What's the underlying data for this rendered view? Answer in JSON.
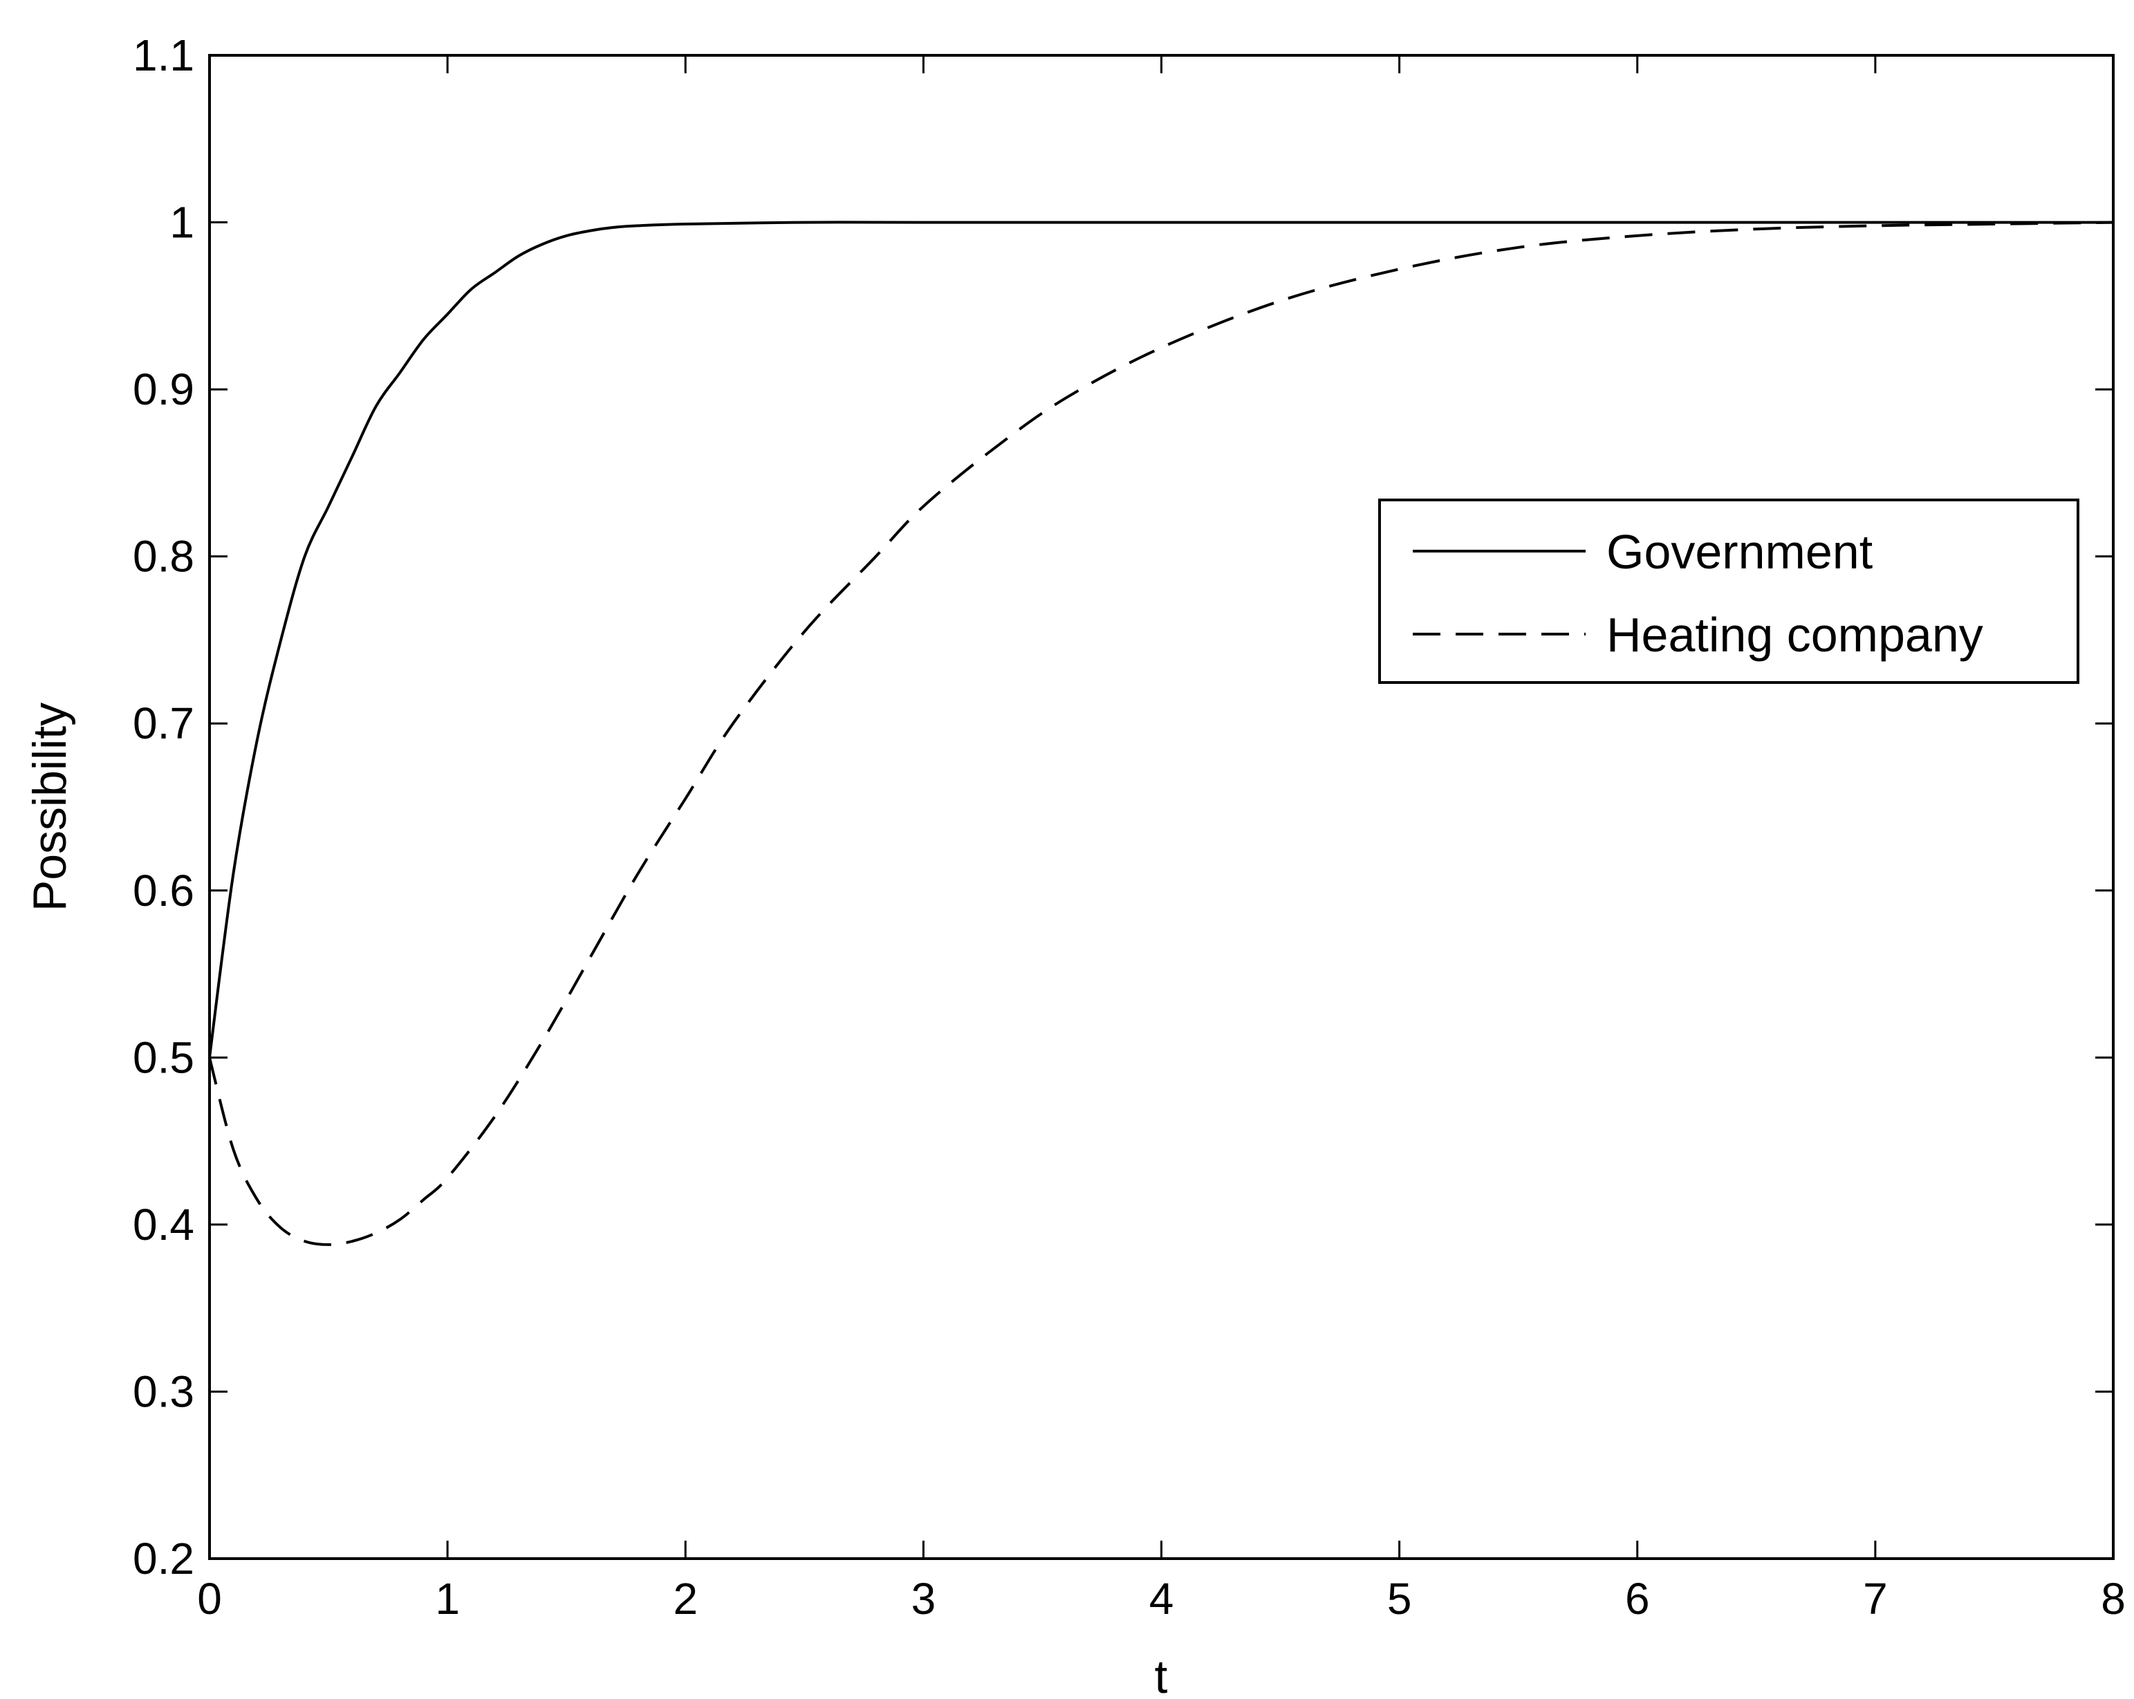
{
  "chart_data": {
    "type": "line",
    "title": "",
    "xlabel": "t",
    "ylabel": "Possibility",
    "xlim": [
      0,
      8
    ],
    "ylim": [
      0.2,
      1.1
    ],
    "xticks": [
      0,
      1,
      2,
      3,
      4,
      5,
      6,
      7,
      8
    ],
    "xtick_labels": [
      "0",
      "1",
      "2",
      "3",
      "4",
      "5",
      "6",
      "7",
      "8"
    ],
    "yticks": [
      0.2,
      0.3,
      0.4,
      0.5,
      0.6,
      0.7,
      0.8,
      0.9,
      1.0,
      1.1
    ],
    "ytick_labels": [
      "0.2",
      "0.3",
      "0.4",
      "0.5",
      "0.6",
      "0.7",
      "0.8",
      "0.9",
      "1",
      "1.1"
    ],
    "grid": false,
    "legend_position": "upper-right",
    "series": [
      {
        "name": "Government",
        "style": "solid",
        "color": "#000000",
        "x": [
          0,
          0.1,
          0.2,
          0.3,
          0.4,
          0.5,
          0.6,
          0.7,
          0.8,
          0.9,
          1.0,
          1.1,
          1.2,
          1.3,
          1.4,
          1.5,
          1.6,
          1.7,
          1.8,
          2.0,
          2.5,
          3.0,
          4.0,
          5.0,
          6.0,
          7.0,
          8.0
        ],
        "y": [
          0.5,
          0.61,
          0.69,
          0.75,
          0.8,
          0.83,
          0.86,
          0.89,
          0.91,
          0.93,
          0.945,
          0.96,
          0.97,
          0.98,
          0.987,
          0.992,
          0.995,
          0.997,
          0.998,
          0.999,
          1.0,
          1.0,
          1.0,
          1.0,
          1.0,
          1.0,
          1.0
        ]
      },
      {
        "name": "Heating company",
        "style": "dashed",
        "color": "#000000",
        "x": [
          0,
          0.1,
          0.2,
          0.3,
          0.4,
          0.5,
          0.6,
          0.7,
          0.8,
          0.9,
          1.0,
          1.2,
          1.4,
          1.6,
          1.8,
          2.0,
          2.2,
          2.5,
          2.8,
          3.0,
          3.3,
          3.6,
          4.0,
          4.5,
          5.0,
          5.5,
          6.0,
          6.5,
          7.0,
          7.5,
          8.0
        ],
        "y": [
          0.5,
          0.445,
          0.415,
          0.398,
          0.39,
          0.388,
          0.39,
          0.395,
          0.403,
          0.415,
          0.428,
          0.465,
          0.51,
          0.56,
          0.61,
          0.655,
          0.7,
          0.755,
          0.8,
          0.83,
          0.865,
          0.895,
          0.925,
          0.953,
          0.972,
          0.985,
          0.992,
          0.996,
          0.998,
          0.999,
          1.0
        ]
      }
    ]
  }
}
